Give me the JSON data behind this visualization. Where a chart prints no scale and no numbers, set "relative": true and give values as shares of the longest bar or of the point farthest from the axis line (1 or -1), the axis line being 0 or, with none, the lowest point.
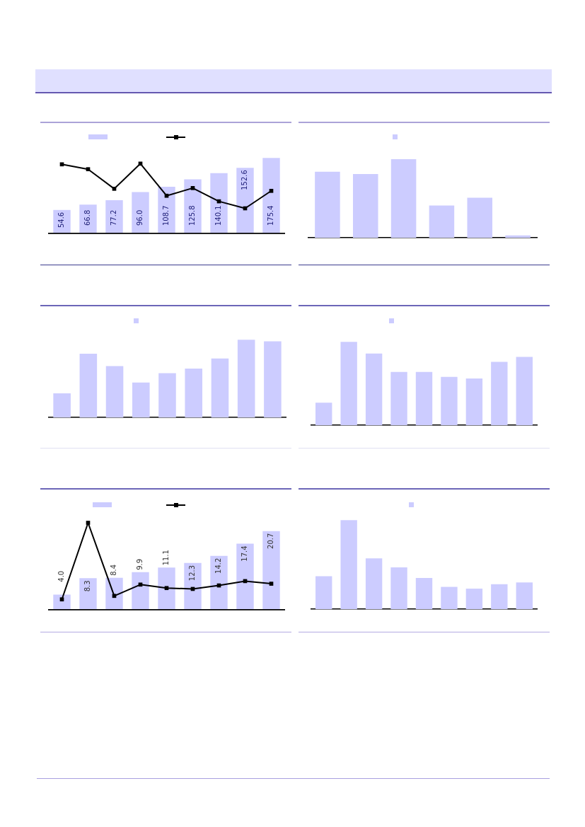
{
  "chart_data": [
    {
      "type": "bar",
      "categories": [
        null,
        null,
        null,
        null,
        null,
        null,
        null,
        null,
        null
      ],
      "values": [
        54.6,
        66.8,
        77.2,
        96.0,
        108.7,
        125.8,
        140.1,
        152.6,
        175.4
      ],
      "value_labels": [
        "54.6",
        "66.8",
        "77.2",
        "96.0",
        "108.7",
        "125.8",
        "140.1",
        "152.6",
        "175.4"
      ],
      "color": "#ccccff",
      "grid": false,
      "tick_labels": false
    },
    {
      "type": "line",
      "relative": true,
      "categories": [
        null,
        null,
        null,
        null,
        null,
        null,
        null,
        null,
        null
      ],
      "values": [
        0.99,
        0.92,
        0.64,
        1,
        0.54,
        0.65,
        0.46,
        0.36,
        0.61
      ],
      "color": "#000000",
      "marker": "square",
      "grid": false,
      "tick_labels": false
    },
    {
      "type": "bar",
      "relative": true,
      "categories": [
        null,
        null,
        null,
        null,
        null,
        null
      ],
      "values": [
        0.84,
        0.81,
        1,
        0.41,
        0.51,
        0.03
      ],
      "color": "#ccccff",
      "grid": false,
      "tick_labels": false
    },
    {
      "type": "bar",
      "relative": true,
      "categories": [
        null,
        null,
        null,
        null,
        null,
        null,
        null,
        null,
        null
      ],
      "values": [
        0.31,
        0.82,
        0.66,
        0.45,
        0.57,
        0.63,
        0.76,
        1,
        0.98
      ],
      "color": "#ccccff",
      "grid": false,
      "tick_labels": false
    },
    {
      "type": "bar",
      "relative": true,
      "categories": [
        null,
        null,
        null,
        null,
        null,
        null,
        null,
        null,
        null
      ],
      "values": [
        0.27,
        1,
        0.86,
        0.64,
        0.64,
        0.58,
        0.56,
        0.76,
        0.82
      ],
      "color": "#ccccff",
      "grid": false,
      "tick_labels": false
    },
    {
      "type": "bar",
      "categories": [
        null,
        null,
        null,
        null,
        null,
        null,
        null,
        null,
        null
      ],
      "values": [
        4.0,
        8.3,
        8.4,
        9.9,
        11.1,
        12.3,
        14.2,
        17.4,
        20.7
      ],
      "value_labels": [
        "4.0",
        "8.3",
        "8.4",
        "9.9",
        "11.1",
        "12.3",
        "14.2",
        "17.4",
        "20.7"
      ],
      "color": "#ccccff",
      "grid": false,
      "tick_labels": false
    },
    {
      "type": "line",
      "relative": true,
      "categories": [
        null,
        null,
        null,
        null,
        null,
        null,
        null,
        null,
        null
      ],
      "values": [
        0.12,
        1,
        0.16,
        0.29,
        0.25,
        0.24,
        0.28,
        0.33,
        0.3
      ],
      "color": "#000000",
      "marker": "square",
      "grid": false,
      "tick_labels": false
    },
    {
      "type": "bar",
      "relative": true,
      "categories": [
        null,
        null,
        null,
        null,
        null,
        null,
        null,
        null,
        null
      ],
      "values": [
        0.37,
        1,
        0.57,
        0.47,
        0.35,
        0.25,
        0.23,
        0.28,
        0.3
      ],
      "color": "#ccccff",
      "grid": false,
      "tick_labels": false
    }
  ]
}
